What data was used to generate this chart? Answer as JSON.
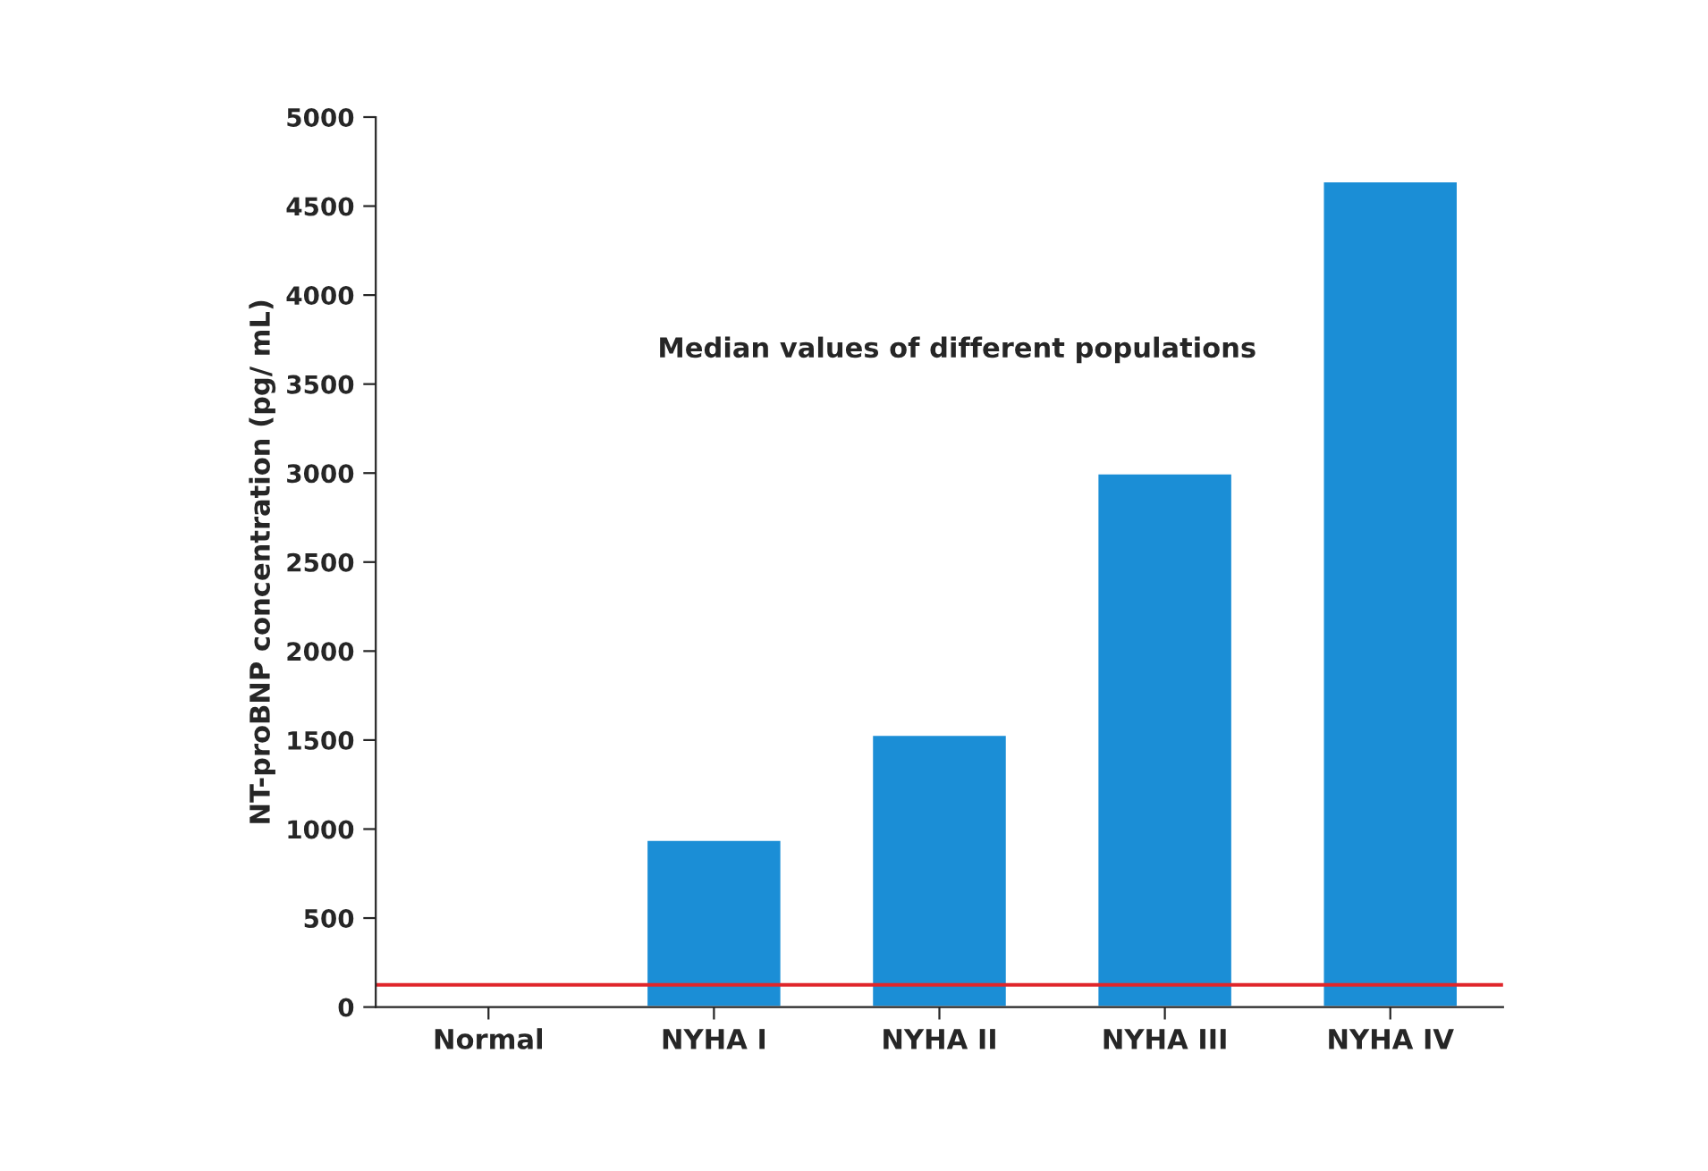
{
  "chart_data": {
    "type": "bar",
    "ylabel": "NT-proBNP concentration (pg/ mL)",
    "categories": [
      "Normal",
      "NYHA I",
      "NYHA II",
      "NYHA III",
      "NYHA IV"
    ],
    "values": [
      null,
      940,
      1530,
      3000,
      4640
    ],
    "color": "#1b8ed6",
    "ylim": [
      0,
      5000
    ],
    "yticks": [
      0,
      500,
      1000,
      1500,
      2000,
      2500,
      3000,
      3500,
      4000,
      4500,
      5000
    ],
    "ref_lines": [
      {
        "axis": "y",
        "value": 125,
        "color": "#e0262b"
      }
    ],
    "annotations": [
      {
        "text": "Median values of different populations"
      }
    ],
    "grid": false,
    "legend": false
  }
}
